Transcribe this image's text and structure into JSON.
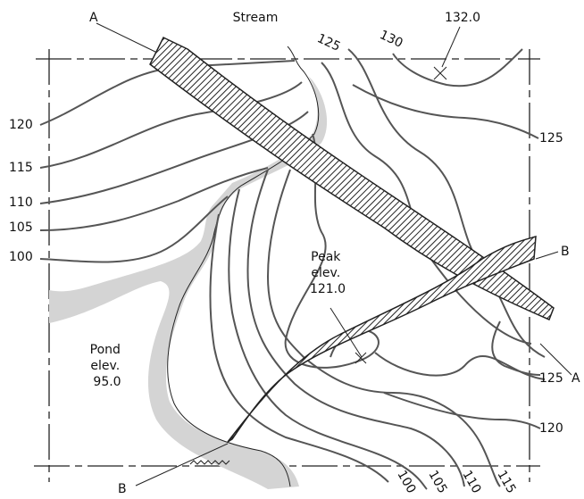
{
  "sections": {
    "a_start": "A",
    "a_end": "A",
    "b_start": "B",
    "b_end": "B"
  },
  "annotations": {
    "stream": "Stream",
    "spot_elevation": "132.0",
    "peak": [
      "Peak",
      "elev.",
      "121.0"
    ],
    "pond": [
      "Pond",
      "elev.",
      "95.0"
    ]
  },
  "contour_labels": {
    "left": [
      "120",
      "115",
      "110",
      "105",
      "100"
    ],
    "top": [
      "125",
      "130"
    ],
    "right": [
      "125",
      "125",
      "120"
    ],
    "bottom": [
      "100",
      "105",
      "110",
      "115"
    ]
  }
}
